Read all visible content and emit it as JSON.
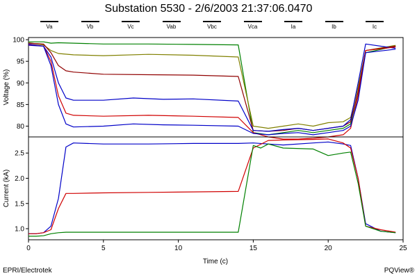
{
  "title": "Substation 5530 - 2/6/2003 21:37:06.0470",
  "legend": [
    "Va",
    "Vb",
    "Vc",
    "Vab",
    "Vbc",
    "Vca",
    "Ia",
    "Ib",
    "Ic"
  ],
  "footer": {
    "left": "EPRI/Electrotek",
    "right": "PQView®"
  },
  "colors": {
    "blue": "#0000c8",
    "red": "#d00000",
    "green": "#008000",
    "olive": "#808000",
    "darkred": "#900000"
  },
  "chart_data": [
    {
      "type": "line",
      "ylabel": "Voltage (%)",
      "xlim": [
        0,
        25
      ],
      "ylim": [
        77.5,
        100.5
      ],
      "yticks": [
        80,
        85,
        90,
        95,
        100
      ],
      "series": [
        {
          "color": "#008000",
          "x": [
            0,
            1,
            1.5,
            2,
            3,
            5,
            8,
            11,
            14,
            15,
            16,
            17,
            18,
            19,
            20,
            21,
            21.5,
            22,
            22.5,
            24.5
          ],
          "y": [
            99.5,
            99.5,
            99.2,
            99.3,
            99.2,
            99.0,
            99.0,
            98.9,
            98.8,
            78.5,
            78.0,
            78.5,
            79.0,
            78.5,
            79.0,
            79.5,
            80.5,
            88,
            97.0,
            98.5
          ]
        },
        {
          "color": "#808000",
          "x": [
            0,
            1,
            1.5,
            2,
            3,
            5,
            8,
            11,
            14,
            15,
            16,
            17,
            18,
            19,
            20,
            21,
            21.5,
            22,
            22.5,
            24.5
          ],
          "y": [
            99.3,
            98.8,
            97.5,
            96.8,
            96.5,
            96.3,
            96.6,
            96.4,
            96.0,
            80.0,
            79.5,
            80.0,
            80.5,
            80.0,
            80.8,
            81.0,
            82.0,
            89,
            97.5,
            98.7
          ]
        },
        {
          "color": "#900000",
          "x": [
            0,
            1,
            1.5,
            2,
            2.5,
            3,
            5,
            8,
            11,
            14,
            15,
            16,
            17,
            18,
            19,
            20,
            21,
            21.5,
            22,
            22.5,
            24.5
          ],
          "y": [
            99.2,
            99.0,
            97.0,
            94.0,
            92.8,
            92.5,
            92.0,
            91.9,
            91.8,
            91.5,
            79.0,
            78.8,
            79.0,
            79.5,
            79.0,
            79.5,
            80.0,
            81.0,
            88,
            97.5,
            98.5
          ]
        },
        {
          "color": "#0000c8",
          "x": [
            0,
            1,
            1.5,
            2,
            2.5,
            3,
            5,
            7,
            9,
            11,
            14,
            15,
            16,
            17,
            18,
            19,
            20,
            21,
            21.5,
            22,
            22.5,
            24.5
          ],
          "y": [
            99.0,
            98.5,
            96.0,
            90.0,
            86.5,
            86.0,
            86.0,
            86.5,
            86.2,
            86.3,
            85.8,
            79.0,
            78.8,
            79.2,
            79.5,
            79.0,
            79.5,
            80.0,
            81.5,
            90,
            99.0,
            98.0
          ]
        },
        {
          "color": "#d00000",
          "x": [
            0,
            1,
            1.5,
            2,
            2.5,
            3,
            5,
            8,
            11,
            14,
            15,
            16,
            17,
            18,
            19,
            20,
            21,
            21.5,
            22,
            22.5,
            24.5
          ],
          "y": [
            98.8,
            98.5,
            95.0,
            87.0,
            83.0,
            82.5,
            82.3,
            82.5,
            82.3,
            82.0,
            78.5,
            77.5,
            77.0,
            77.0,
            77.2,
            77.5,
            78.0,
            79.5,
            87,
            97.5,
            98.3
          ]
        },
        {
          "color": "#0000c8",
          "x": [
            0,
            1,
            1.5,
            2,
            2.5,
            3,
            5,
            7,
            9,
            11,
            14,
            15,
            16,
            17,
            18,
            19,
            20,
            21,
            21.5,
            22,
            22.5,
            24.5
          ],
          "y": [
            98.7,
            98.5,
            94.0,
            85.0,
            80.5,
            79.8,
            80.0,
            80.5,
            80.3,
            80.2,
            80.0,
            78.3,
            78.0,
            78.3,
            78.5,
            78.0,
            78.5,
            79.0,
            80.0,
            86,
            97.0,
            97.8
          ]
        }
      ]
    },
    {
      "type": "line",
      "xlabel": "Time (c)",
      "ylabel": "Current (kA)",
      "xlim": [
        0,
        25
      ],
      "ylim": [
        0.78,
        2.82
      ],
      "xticks": [
        0,
        5,
        10,
        15,
        20,
        25
      ],
      "yticks": [
        1.0,
        1.5,
        2.0,
        2.5
      ],
      "series": [
        {
          "color": "#0000c8",
          "x": [
            0,
            0.5,
            1,
            1.5,
            2,
            2.5,
            3,
            5,
            8,
            11,
            14,
            15,
            16,
            17,
            19,
            20,
            21,
            21.5,
            22,
            22.5,
            23.5,
            24.5
          ],
          "y": [
            0.9,
            0.9,
            0.92,
            1.05,
            1.6,
            2.62,
            2.7,
            2.68,
            2.68,
            2.69,
            2.69,
            2.7,
            2.68,
            2.66,
            2.7,
            2.72,
            2.68,
            2.65,
            2.0,
            1.1,
            0.95,
            0.92
          ]
        },
        {
          "color": "#d00000",
          "x": [
            0,
            0.5,
            1,
            1.5,
            2,
            2.5,
            3,
            5,
            8,
            11,
            14,
            15,
            16,
            17,
            19,
            20,
            21,
            21.5,
            22,
            22.5,
            23.5,
            24.5
          ],
          "y": [
            0.9,
            0.9,
            0.92,
            0.98,
            1.4,
            1.7,
            1.7,
            1.71,
            1.72,
            1.73,
            1.74,
            2.6,
            2.75,
            2.76,
            2.77,
            2.78,
            2.7,
            2.6,
            2.0,
            1.05,
            0.98,
            0.93
          ]
        },
        {
          "color": "#008000",
          "x": [
            0,
            0.5,
            1,
            1.5,
            2,
            2.5,
            3,
            5,
            8,
            11,
            14,
            15,
            15.5,
            16,
            17,
            19,
            20,
            21,
            21.5,
            22,
            22.5,
            23.5,
            24.5
          ],
          "y": [
            0.85,
            0.85,
            0.86,
            0.9,
            0.92,
            0.93,
            0.93,
            0.93,
            0.93,
            0.93,
            0.93,
            2.65,
            2.6,
            2.68,
            2.6,
            2.58,
            2.45,
            2.5,
            2.52,
            1.9,
            1.05,
            0.95,
            0.92
          ]
        }
      ]
    }
  ]
}
